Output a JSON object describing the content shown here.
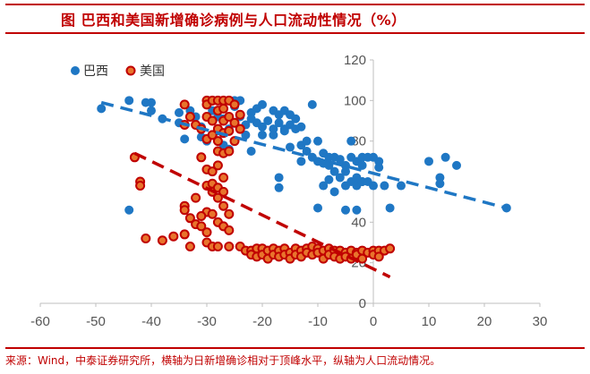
{
  "title": "图  巴西和美国新增确诊病例与人口流动性情况（%）",
  "source": "来源：Wind，中泰证券研究所，横轴为日新增确诊相对于顶峰水平，纵轴为人口流动情况。",
  "colors": {
    "brazil": "#1f77c4",
    "usa": "#c00000",
    "usa_edge": "#c00000",
    "usa_fill": "#e8742c",
    "frame": "#c00000"
  },
  "chart_data": {
    "type": "scatter",
    "title": "",
    "xlabel": "",
    "ylabel": "",
    "xlim": [
      -60,
      30
    ],
    "ylim": [
      0,
      120
    ],
    "x_ticks": [
      "-60",
      "-50",
      "-40",
      "-30",
      "-20",
      "-10",
      "0",
      "10",
      "20",
      "30"
    ],
    "y_ticks": [
      "0",
      "20",
      "40",
      "60",
      "80",
      "100",
      "120"
    ],
    "legend_position": "top-left",
    "grid": false,
    "series": [
      {
        "name": "巴西",
        "points": [
          [
            -49,
            96
          ],
          [
            -44,
            100
          ],
          [
            -44,
            46
          ],
          [
            -41,
            99
          ],
          [
            -40,
            99
          ],
          [
            -40,
            95
          ],
          [
            -38,
            91
          ],
          [
            -35,
            94
          ],
          [
            -35,
            89
          ],
          [
            -34,
            81
          ],
          [
            -33,
            95
          ],
          [
            -32,
            92
          ],
          [
            -31,
            87
          ],
          [
            -31,
            82
          ],
          [
            -30,
            80
          ],
          [
            -29,
            95
          ],
          [
            -28,
            92
          ],
          [
            -28,
            85
          ],
          [
            -27,
            91
          ],
          [
            -26,
            86
          ],
          [
            -26,
            76
          ],
          [
            -25,
            97
          ],
          [
            -24,
            92
          ],
          [
            -24,
            100
          ],
          [
            -23,
            88
          ],
          [
            -23,
            83
          ],
          [
            -22,
            94
          ],
          [
            -22,
            91
          ],
          [
            -21,
            96
          ],
          [
            -21,
            89
          ],
          [
            -20,
            87
          ],
          [
            -20,
            83
          ],
          [
            -19,
            90
          ],
          [
            -18,
            95
          ],
          [
            -18,
            86
          ],
          [
            -17,
            93
          ],
          [
            -17,
            89
          ],
          [
            -16,
            95
          ],
          [
            -16,
            86
          ],
          [
            -15,
            93
          ],
          [
            -15,
            88
          ],
          [
            -14,
            91
          ],
          [
            -14,
            86
          ],
          [
            -13,
            87
          ],
          [
            -13,
            78
          ],
          [
            -12,
            80
          ],
          [
            -12,
            75
          ],
          [
            -11,
            98
          ],
          [
            -11,
            72
          ],
          [
            -10,
            80
          ],
          [
            -10,
            70
          ],
          [
            -10,
            47
          ],
          [
            -9,
            74
          ],
          [
            -9,
            69
          ],
          [
            -8,
            72
          ],
          [
            -8,
            68
          ],
          [
            -7,
            72
          ],
          [
            -7,
            65
          ],
          [
            -7,
            55
          ],
          [
            -6,
            71
          ],
          [
            -6,
            62
          ],
          [
            -5,
            68
          ],
          [
            -5,
            65
          ],
          [
            -5,
            58
          ],
          [
            -5,
            46
          ],
          [
            -4,
            80
          ],
          [
            -4,
            72
          ],
          [
            -4,
            60
          ],
          [
            -3,
            70
          ],
          [
            -3,
            62
          ],
          [
            -3,
            58
          ],
          [
            -3,
            46
          ],
          [
            -2,
            72
          ],
          [
            -2,
            68
          ],
          [
            -2,
            60
          ],
          [
            -1,
            72
          ],
          [
            -1,
            60
          ],
          [
            0,
            72
          ],
          [
            0,
            58
          ],
          [
            1,
            70
          ],
          [
            1,
            67
          ],
          [
            2,
            58
          ],
          [
            3,
            47
          ],
          [
            5,
            58
          ],
          [
            10,
            70
          ],
          [
            12,
            62
          ],
          [
            12,
            59
          ],
          [
            13,
            72
          ],
          [
            15,
            68
          ],
          [
            24,
            47
          ],
          [
            -16,
            85
          ],
          [
            -22,
            75
          ],
          [
            -20,
            98
          ],
          [
            -17,
            62
          ],
          [
            -17,
            57
          ],
          [
            -13,
            70
          ],
          [
            -9,
            58
          ],
          [
            -18,
            83
          ],
          [
            -15,
            77
          ],
          [
            -25,
            100
          ],
          [
            -27,
            78
          ],
          [
            -8,
            61
          ]
        ]
      },
      {
        "name": "美国",
        "points": [
          [
            -43,
            72
          ],
          [
            -42,
            60
          ],
          [
            -42,
            58
          ],
          [
            -41,
            32
          ],
          [
            -38,
            31
          ],
          [
            -36,
            33
          ],
          [
            -34,
            34
          ],
          [
            -34,
            98
          ],
          [
            -34,
            88
          ],
          [
            -34,
            48
          ],
          [
            -34,
            46
          ],
          [
            -33,
            92
          ],
          [
            -33,
            42
          ],
          [
            -32,
            88
          ],
          [
            -32,
            39
          ],
          [
            -31,
            86
          ],
          [
            -31,
            72
          ],
          [
            -31,
            38
          ],
          [
            -30,
            100
          ],
          [
            -30,
            98
          ],
          [
            -30,
            92
          ],
          [
            -30,
            81
          ],
          [
            -30,
            66
          ],
          [
            -30,
            58
          ],
          [
            -30,
            45
          ],
          [
            -30,
            35
          ],
          [
            -30,
            30
          ],
          [
            -29,
            100
          ],
          [
            -29,
            90
          ],
          [
            -29,
            83
          ],
          [
            -29,
            65
          ],
          [
            -29,
            59
          ],
          [
            -29,
            55
          ],
          [
            -29,
            44
          ],
          [
            -29,
            28
          ],
          [
            -28,
            100
          ],
          [
            -28,
            95
          ],
          [
            -28,
            86
          ],
          [
            -28,
            80
          ],
          [
            -28,
            75
          ],
          [
            -28,
            68
          ],
          [
            -28,
            57
          ],
          [
            -28,
            52
          ],
          [
            -28,
            40
          ],
          [
            -28,
            28
          ],
          [
            -27,
            100
          ],
          [
            -27,
            96
          ],
          [
            -27,
            90
          ],
          [
            -27,
            84
          ],
          [
            -27,
            74
          ],
          [
            -27,
            62
          ],
          [
            -27,
            55
          ],
          [
            -27,
            48
          ],
          [
            -27,
            38
          ],
          [
            -26,
            100
          ],
          [
            -26,
            92
          ],
          [
            -26,
            85
          ],
          [
            -26,
            75
          ],
          [
            -26,
            44
          ],
          [
            -26,
            36
          ],
          [
            -26,
            28
          ],
          [
            -25,
            98
          ],
          [
            -25,
            89
          ],
          [
            -25,
            80
          ],
          [
            -24,
            93
          ],
          [
            -24,
            86
          ],
          [
            -24,
            28
          ],
          [
            -23,
            26
          ],
          [
            -22,
            26
          ],
          [
            -22,
            24
          ],
          [
            -21,
            27
          ],
          [
            -21,
            23
          ],
          [
            -20,
            27
          ],
          [
            -20,
            24
          ],
          [
            -19,
            26
          ],
          [
            -19,
            22
          ],
          [
            -18,
            27
          ],
          [
            -18,
            24
          ],
          [
            -17,
            26
          ],
          [
            -17,
            23
          ],
          [
            -16,
            27
          ],
          [
            -16,
            24
          ],
          [
            -15,
            25
          ],
          [
            -15,
            22
          ],
          [
            -14,
            27
          ],
          [
            -14,
            24
          ],
          [
            -13,
            26
          ],
          [
            -13,
            23
          ],
          [
            -12,
            27
          ],
          [
            -12,
            25
          ],
          [
            -11,
            28
          ],
          [
            -11,
            24
          ],
          [
            -10,
            27
          ],
          [
            -10,
            25
          ],
          [
            -9,
            26
          ],
          [
            -9,
            22
          ],
          [
            -8,
            27
          ],
          [
            -8,
            24
          ],
          [
            -7,
            26
          ],
          [
            -7,
            23
          ],
          [
            -6,
            26
          ],
          [
            -6,
            22
          ],
          [
            -5,
            25
          ],
          [
            -5,
            23
          ],
          [
            -4,
            26
          ],
          [
            -4,
            22
          ],
          [
            -3,
            25
          ],
          [
            -3,
            24
          ],
          [
            -2,
            26
          ],
          [
            -2,
            22
          ],
          [
            -1,
            25
          ],
          [
            0,
            26
          ],
          [
            0,
            24
          ],
          [
            1,
            26
          ],
          [
            1,
            23
          ],
          [
            2,
            26
          ],
          [
            3,
            27
          ],
          [
            -32,
            52
          ],
          [
            -33,
            28
          ],
          [
            -31,
            43
          ]
        ]
      }
    ],
    "trendlines": [
      {
        "series": "巴西",
        "from": [
          -49,
          99
        ],
        "to": [
          24,
          47
        ]
      },
      {
        "series": "美国",
        "from": [
          -43,
          74
        ],
        "to": [
          3,
          13
        ]
      }
    ]
  }
}
